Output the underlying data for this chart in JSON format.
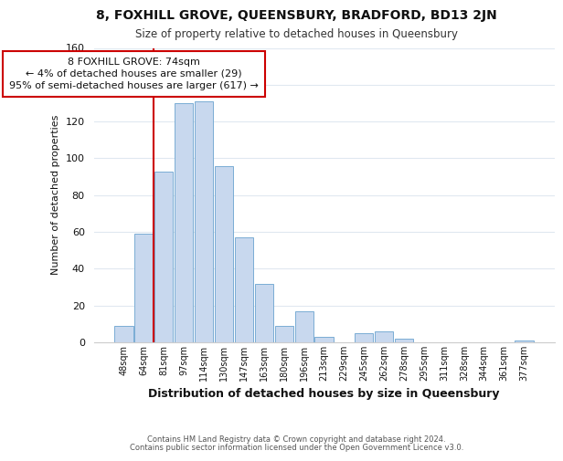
{
  "title": "8, FOXHILL GROVE, QUEENSBURY, BRADFORD, BD13 2JN",
  "subtitle": "Size of property relative to detached houses in Queensbury",
  "xlabel": "Distribution of detached houses by size in Queensbury",
  "ylabel": "Number of detached properties",
  "bar_color": "#c8d8ee",
  "bar_edge_color": "#7aadd4",
  "categories": [
    "48sqm",
    "64sqm",
    "81sqm",
    "97sqm",
    "114sqm",
    "130sqm",
    "147sqm",
    "163sqm",
    "180sqm",
    "196sqm",
    "213sqm",
    "229sqm",
    "245sqm",
    "262sqm",
    "278sqm",
    "295sqm",
    "311sqm",
    "328sqm",
    "344sqm",
    "361sqm",
    "377sqm"
  ],
  "values": [
    9,
    59,
    93,
    130,
    131,
    96,
    57,
    32,
    9,
    17,
    3,
    0,
    5,
    6,
    2,
    0,
    0,
    0,
    0,
    0,
    1
  ],
  "ylim": [
    0,
    160
  ],
  "yticks": [
    0,
    20,
    40,
    60,
    80,
    100,
    120,
    140,
    160
  ],
  "reference_line_color": "#cc0000",
  "annotation_line1": "8 FOXHILL GROVE: 74sqm",
  "annotation_line2": "← 4% of detached houses are smaller (29)",
  "annotation_line3": "95% of semi-detached houses are larger (617) →",
  "annotation_box_color": "#ffffff",
  "annotation_box_edge_color": "#cc0000",
  "footer_line1": "Contains HM Land Registry data © Crown copyright and database right 2024.",
  "footer_line2": "Contains public sector information licensed under the Open Government Licence v3.0.",
  "background_color": "#ffffff",
  "grid_color": "#e0e8f0"
}
